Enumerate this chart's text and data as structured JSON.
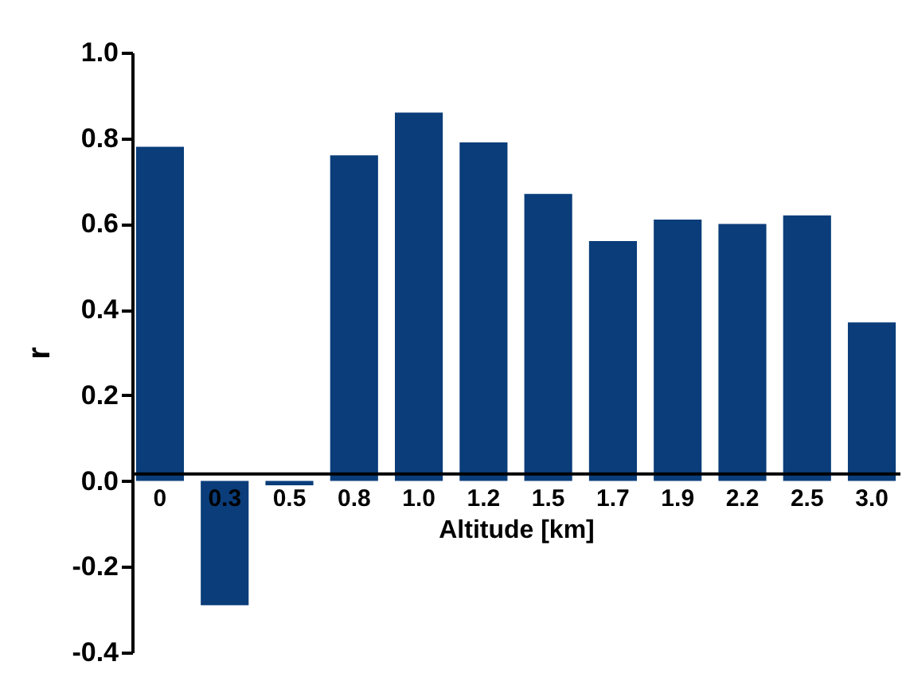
{
  "chart_data": {
    "type": "bar",
    "xlabel": "Altitude [km]",
    "ylabel": "r",
    "categories": [
      "0",
      "0.3",
      "0.5",
      "0.8",
      "1.0",
      "1.2",
      "1.5",
      "1.7",
      "1.9",
      "2.2",
      "2.5",
      "3.0"
    ],
    "values": [
      0.78,
      -0.29,
      -0.01,
      0.76,
      0.86,
      0.79,
      0.67,
      0.56,
      0.61,
      0.6,
      0.62,
      0.37
    ],
    "color": "#0a3d7a",
    "ylim": [
      -0.4,
      1.0
    ],
    "yticks": [
      {
        "value": -0.4,
        "label": "-0.4"
      },
      {
        "value": -0.2,
        "label": "-0.2"
      },
      {
        "value": 0,
        "label": "0.0"
      },
      {
        "value": 0.2,
        "label": "0.2"
      },
      {
        "value": 0.4,
        "label": "0.4"
      },
      {
        "value": 0.6,
        "label": "0.6"
      },
      {
        "value": 0.8,
        "label": "0.8"
      },
      {
        "value": 1,
        "label": "1.0"
      }
    ],
    "grid": false
  }
}
